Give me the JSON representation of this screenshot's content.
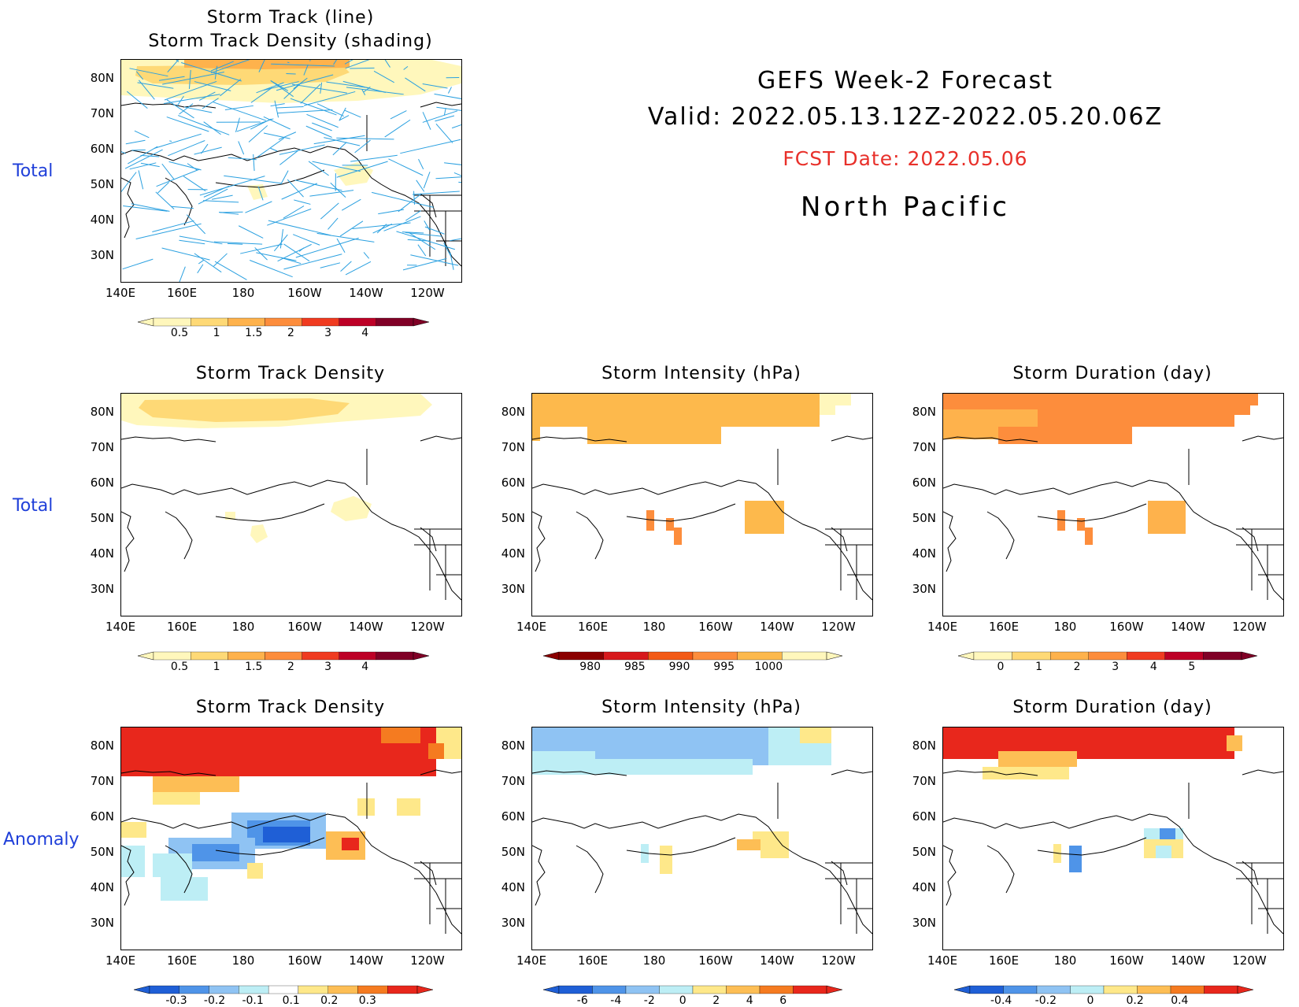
{
  "header": {
    "line1": "GEFS Week-2 Forecast",
    "line2": "Valid: 2022.05.13.12Z-2022.05.20.06Z",
    "fcst_date": "FCST Date: 2022.05.06",
    "region": "North Pacific"
  },
  "colors": {
    "row_label": "#1f3fd9",
    "fcst_date": "#e8302a"
  },
  "row_labels": {
    "total_top": "Total",
    "total_mid": "Total",
    "anomaly": "Anomaly"
  },
  "axes": {
    "lat_ticks": [
      "80N",
      "70N",
      "60N",
      "50N",
      "40N",
      "30N"
    ],
    "lon_ticks": [
      "140E",
      "160E",
      "180",
      "160W",
      "140W",
      "120W"
    ]
  },
  "panels": {
    "track": {
      "title1": "Storm Track (line)",
      "title2": "Storm Track Density (shading)"
    },
    "density_total": {
      "title": "Storm Track Density"
    },
    "intensity_total": {
      "title": "Storm Intensity (hPa)"
    },
    "duration_total": {
      "title": "Storm Duration (day)"
    },
    "density_anom": {
      "title": "Storm Track Density"
    },
    "intensity_anom": {
      "title": "Storm Intensity (hPa)"
    },
    "duration_anom": {
      "title": "Storm Duration (day)"
    }
  },
  "colorbars": {
    "density_total": {
      "labels": [
        "0.5",
        "1",
        "1.5",
        "2",
        "3",
        "4"
      ],
      "colors": [
        "#fff7bc",
        "#fed976",
        "#feb24c",
        "#fd8d3c",
        "#f03b20",
        "#bd0026",
        "#800026"
      ]
    },
    "intensity_total": {
      "labels": [
        "980",
        "985",
        "990",
        "995",
        "1000"
      ],
      "colors": [
        "#8b0000",
        "#d7191c",
        "#f35a16",
        "#fd8d3c",
        "#fdb94c",
        "#fff7bc"
      ]
    },
    "duration_total": {
      "labels": [
        "0",
        "1",
        "2",
        "3",
        "4",
        "5"
      ],
      "colors": [
        "#fff7bc",
        "#fed976",
        "#feb24c",
        "#fd8d3c",
        "#f03b20",
        "#bd0026",
        "#800026"
      ]
    },
    "density_anom": {
      "labels": [
        "-0.3",
        "-0.2",
        "-0.1",
        "0.1",
        "0.2",
        "0.3"
      ],
      "colors": [
        "#1f5fd6",
        "#4f94e8",
        "#8fc3f3",
        "#bdeef5",
        "#ffffff",
        "#fee88a",
        "#fdbe55",
        "#f57b20",
        "#e8271c"
      ]
    },
    "intensity_anom": {
      "labels": [
        "-6",
        "-4",
        "-2",
        "0",
        "2",
        "4",
        "6"
      ],
      "colors": [
        "#1f5fd6",
        "#4f94e8",
        "#8fc3f3",
        "#bdeef5",
        "#fee88a",
        "#fdbe55",
        "#f57b20",
        "#e8271c"
      ]
    },
    "duration_anom": {
      "labels": [
        "-0.4",
        "-0.2",
        "0",
        "0.2",
        "0.4"
      ],
      "colors": [
        "#1f5fd6",
        "#4f94e8",
        "#8fc3f3",
        "#bdeef5",
        "#fee88a",
        "#fdbe55",
        "#f57b20",
        "#e8271c"
      ]
    }
  }
}
